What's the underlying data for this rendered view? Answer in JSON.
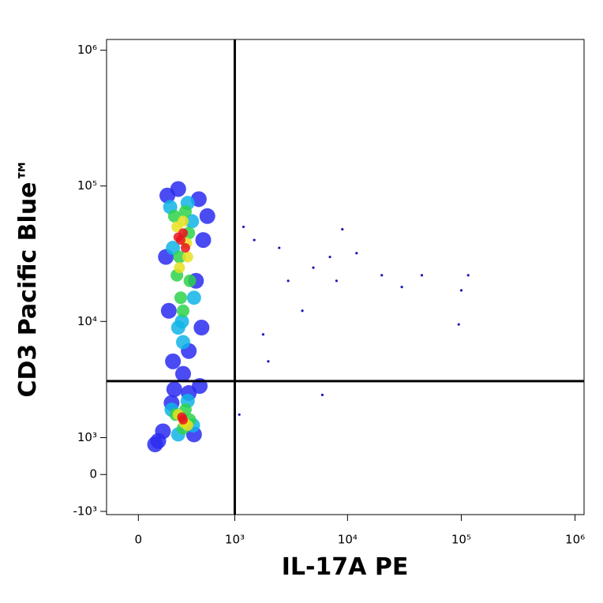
{
  "chart_data": {
    "type": "scatter",
    "x_label": "IL-17A PE",
    "y_label": "CD3 Pacific Blue™",
    "xscale": "biexponential",
    "yscale": "biexponential",
    "xlim": [
      -200,
      1200000
    ],
    "ylim": [
      -1100,
      1200000
    ],
    "xticks": [
      0,
      {
        "value": 1000,
        "label": "10³"
      },
      {
        "value": 10000,
        "label": "10⁴"
      },
      {
        "value": 100000,
        "label": "10⁵"
      },
      {
        "value": 1000000,
        "label": "10⁶"
      }
    ],
    "yticks": [
      {
        "value": -1000,
        "label": "-10³"
      },
      0,
      {
        "value": 1000,
        "label": "10³"
      },
      {
        "value": 10000,
        "label": "10⁴"
      },
      {
        "value": 100000,
        "label": "10⁵"
      },
      {
        "value": 1000000,
        "label": "10⁶"
      }
    ],
    "gates": {
      "x": 1000,
      "y": 3500,
      "color": "#000000"
    },
    "series": [
      {
        "color": "#1a1ab4",
        "x": [
          1200,
          1500,
          2500,
          3000,
          5000,
          7000,
          9000,
          12000,
          20000,
          30000,
          45000,
          100000,
          115000,
          95000,
          1800,
          2000,
          4000,
          8000,
          6000,
          1100
        ],
        "y": [
          50000,
          40000,
          35000,
          20000,
          25000,
          30000,
          48000,
          32000,
          22000,
          18000,
          22000,
          17000,
          22000,
          9500,
          8000,
          5000,
          12000,
          20000,
          2700,
          1800
        ]
      },
      {
        "color": "#2a2cf0",
        "x": [
          180,
          450,
          220,
          500,
          170,
          420,
          260,
          350,
          190,
          480,
          300,
          230,
          150,
          120,
          400,
          350,
          210,
          460,
          550,
          100
        ],
        "y": [
          85000,
          80000,
          5000,
          40000,
          30000,
          20000,
          95000,
          6000,
          12000,
          9000,
          4000,
          3000,
          1200,
          900,
          1100,
          2800,
          2300,
          3200,
          60000,
          800
        ]
      },
      {
        "color": "#10b4e8",
        "x": [
          200,
          400,
          260,
          340,
          220,
          380,
          300,
          290,
          210,
          390,
          260,
          340
        ],
        "y": [
          70000,
          15000,
          9000,
          75000,
          35000,
          55000,
          7000,
          10000,
          2000,
          1400,
          1100,
          2400
        ]
      },
      {
        "color": "#2ed24a",
        "x": [
          230,
          360,
          280,
          320,
          250,
          350,
          300,
          270,
          240,
          360,
          300,
          320
        ],
        "y": [
          60000,
          20000,
          15000,
          65000,
          22000,
          45000,
          12000,
          30000,
          1800,
          1600,
          1300,
          2000
        ]
      },
      {
        "color": "#e8e020",
        "x": [
          250,
          340,
          300,
          270,
          330,
          310,
          260,
          340
        ],
        "y": [
          50000,
          30000,
          55000,
          25000,
          38000,
          1500,
          1800,
          1400
        ]
      },
      {
        "color": "#e8141c",
        "x": [
          280,
          300,
          320,
          260,
          300,
          290
        ],
        "y": [
          40000,
          45000,
          35000,
          42000,
          1600,
          1700
        ]
      }
    ]
  }
}
